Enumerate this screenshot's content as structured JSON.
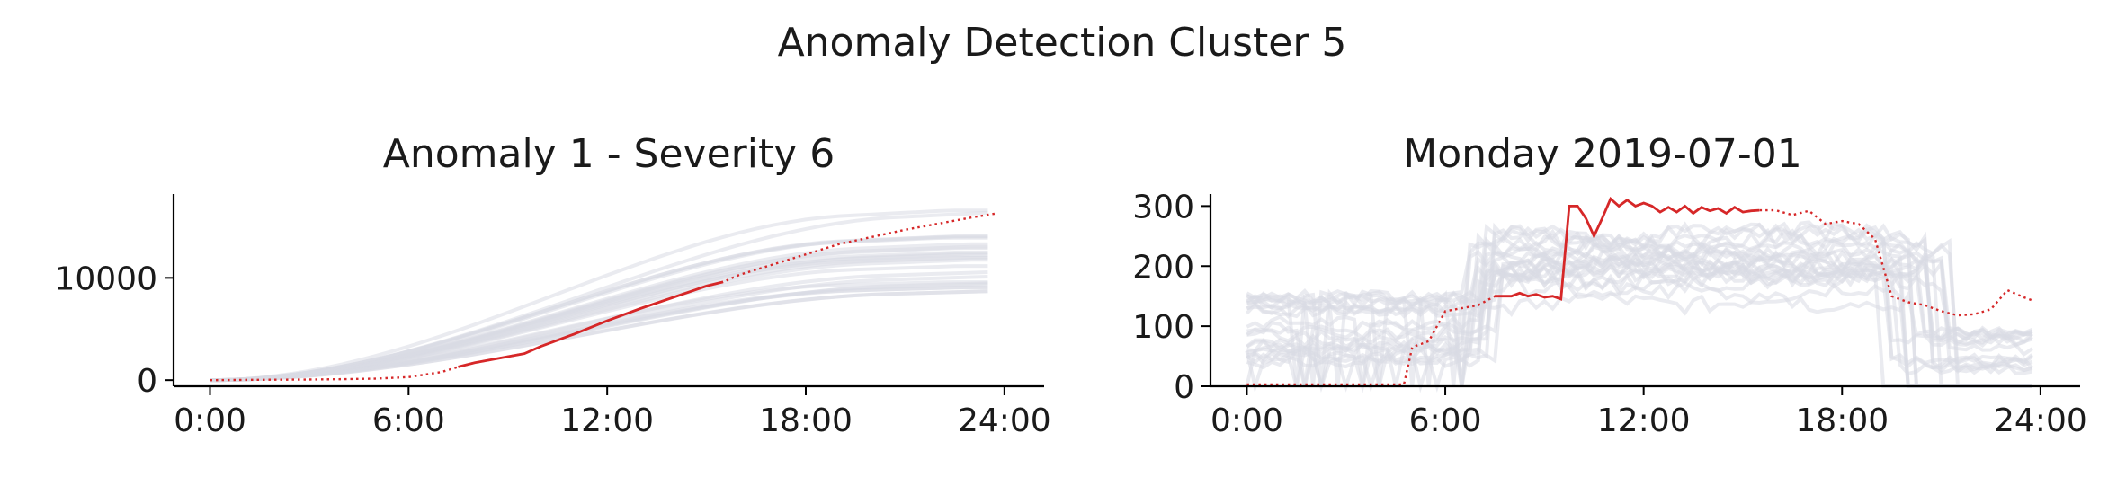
{
  "figure": {
    "suptitle": "Anomaly Detection Cluster 5"
  },
  "chart_data": [
    {
      "type": "line",
      "title": "Anomaly 1 - Severity 6",
      "xlabel": "",
      "ylabel": "",
      "x_ticks": [
        "0:00",
        "6:00",
        "12:00",
        "18:00",
        "24:00"
      ],
      "y_ticks": [
        "0",
        "10000"
      ],
      "xlim": [
        -1.1,
        25.2
      ],
      "ylim": [
        -600,
        18200
      ],
      "grid": false,
      "colors": {
        "background_series": "#d9dae3",
        "anomaly": "#d62728"
      },
      "background_series_count": 24,
      "anomaly_series": {
        "x": [
          0,
          1,
          2,
          3,
          4,
          5,
          6,
          7,
          7.5,
          8,
          9,
          9.5,
          10,
          11,
          12,
          13,
          14,
          15,
          15.5,
          16,
          17,
          18,
          19,
          20,
          21,
          22,
          23,
          23.75
        ],
        "y": [
          0,
          20,
          40,
          60,
          90,
          150,
          300,
          800,
          1300,
          1700,
          2300,
          2600,
          3300,
          4500,
          5800,
          7000,
          8100,
          9200,
          9600,
          10300,
          11300,
          12300,
          13300,
          14000,
          14700,
          15300,
          15900,
          16300
        ],
        "solid_range": [
          7.5,
          15.5
        ]
      }
    },
    {
      "type": "line",
      "title": "Monday 2019-07-01",
      "xlabel": "",
      "ylabel": "",
      "x_ticks": [
        "0:00",
        "6:00",
        "12:00",
        "18:00",
        "24:00"
      ],
      "y_ticks": [
        "0",
        "100",
        "200",
        "300"
      ],
      "xlim": [
        -1.1,
        25.2
      ],
      "ylim": [
        0,
        320
      ],
      "grid": false,
      "colors": {
        "background_series": "#d9dae3",
        "anomaly": "#d62728"
      },
      "background_series_count": 24,
      "anomaly_series": {
        "x": [
          0,
          1,
          2,
          3,
          4,
          4.75,
          5,
          5.5,
          6,
          6.5,
          7,
          7.5,
          8,
          8.25,
          8.5,
          8.75,
          9,
          9.25,
          9.5,
          9.75,
          10,
          10.25,
          10.5,
          10.75,
          11,
          11.25,
          11.5,
          11.75,
          12,
          12.25,
          12.5,
          12.75,
          13,
          13.25,
          13.5,
          13.75,
          14,
          14.25,
          14.5,
          14.75,
          15,
          15.25,
          15.5,
          16,
          16.5,
          17,
          17.5,
          18,
          18.5,
          19,
          19.5,
          20,
          20.5,
          21,
          21.5,
          22,
          22.5,
          23,
          23.5,
          23.75
        ],
        "y": [
          3,
          3,
          3,
          3,
          3,
          3,
          65,
          75,
          125,
          130,
          135,
          150,
          150,
          155,
          150,
          153,
          148,
          150,
          145,
          300,
          300,
          280,
          250,
          280,
          312,
          300,
          310,
          300,
          305,
          300,
          290,
          298,
          290,
          300,
          288,
          298,
          292,
          296,
          288,
          298,
          290,
          292,
          293,
          293,
          285,
          292,
          270,
          275,
          270,
          245,
          150,
          140,
          135,
          125,
          118,
          120,
          128,
          160,
          148,
          143
        ],
        "solid_range": [
          7.5,
          15.5
        ]
      }
    }
  ]
}
